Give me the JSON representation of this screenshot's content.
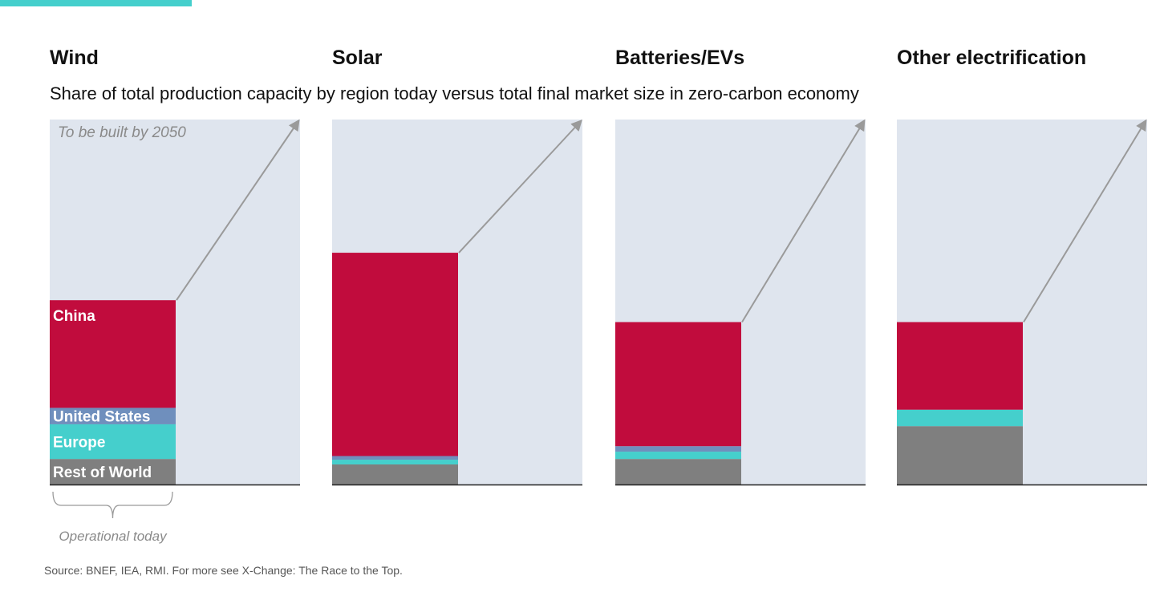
{
  "accent_color": "#45cfcc",
  "subtitle": "Share of total production capacity by region today versus total final market size in zero-carbon economy",
  "source": "Source: BNEF, IEA, RMI. For more see X-Change: The Race to the Top.",
  "annotations": {
    "future": "To be built by 2050",
    "today": "Operational today"
  },
  "colors": {
    "China": "#c10c3d",
    "United States": "#6f8fbd",
    "Europe": "#45cfcc",
    "Rest of World": "#7f7f7f",
    "future_area": "#dfe5ee",
    "arrow": "#9a9a9a",
    "baseline": "#222222"
  },
  "chart_data": {
    "type": "stacked-bar",
    "unit": "share of total final market size in zero-carbon economy (%)",
    "ylim": [
      0,
      100
    ],
    "regions": [
      "Rest of World",
      "Europe",
      "United States",
      "China"
    ],
    "panels": [
      {
        "title": "Wind",
        "series": [
          {
            "name": "Rest of World",
            "value": 7
          },
          {
            "name": "Europe",
            "value": 9.5
          },
          {
            "name": "United States",
            "value": 4.5
          },
          {
            "name": "China",
            "value": 29.5
          }
        ],
        "labels": [
          "China",
          "United States",
          "Europe",
          "Rest of World"
        ]
      },
      {
        "title": "Solar",
        "series": [
          {
            "name": "Rest of World",
            "value": 5.5
          },
          {
            "name": "Europe",
            "value": 1.3
          },
          {
            "name": "United States",
            "value": 1
          },
          {
            "name": "China",
            "value": 55.7
          }
        ],
        "labels": []
      },
      {
        "title": "Batteries/EVs",
        "series": [
          {
            "name": "Rest of World",
            "value": 7
          },
          {
            "name": "Europe",
            "value": 2
          },
          {
            "name": "United States",
            "value": 1.5
          },
          {
            "name": "China",
            "value": 34
          }
        ],
        "labels": []
      },
      {
        "title": "Other electrification",
        "series": [
          {
            "name": "Rest of World",
            "value": 16
          },
          {
            "name": "Europe",
            "value": 4.5
          },
          {
            "name": "United States",
            "value": 0
          },
          {
            "name": "China",
            "value": 24
          }
        ],
        "labels": []
      }
    ]
  }
}
